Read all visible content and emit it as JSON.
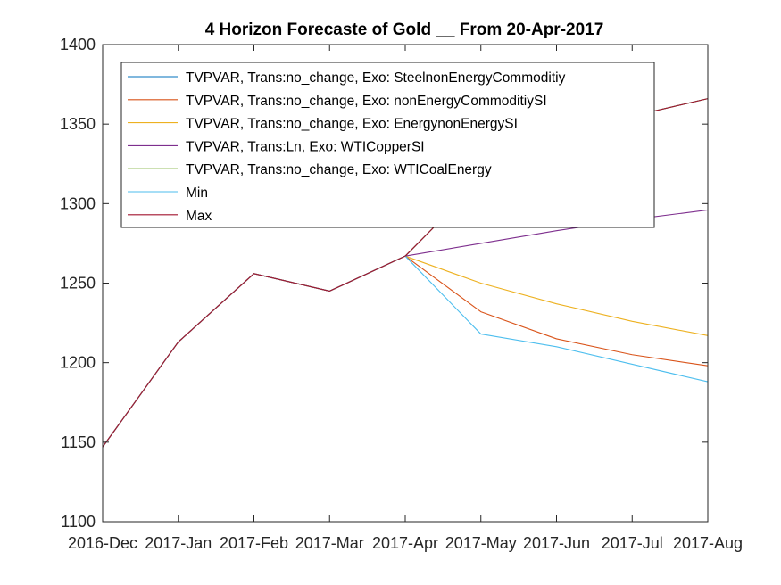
{
  "chart_data": {
    "type": "line",
    "title": "4 Horizon Forecaste of Gold __ From 20-Apr-2017",
    "xlabel": "",
    "ylabel": "",
    "categories": [
      "2016-Dec",
      "2017-Jan",
      "2017-Feb",
      "2017-Mar",
      "2017-Apr",
      "2017-May",
      "2017-Jun",
      "2017-Jul",
      "2017-Aug"
    ],
    "ylim": [
      1100,
      1400
    ],
    "yticks": [
      1100,
      1150,
      1200,
      1250,
      1300,
      1350,
      1400
    ],
    "grid": false,
    "legend_position": "top",
    "series": [
      {
        "name": "TVPVAR, Trans:no_change, Exo: SteelnonEnergyCommoditiy",
        "color": "#0072BD",
        "values": [
          1147,
          1213,
          1256,
          1245,
          1267,
          1315,
          1337,
          1355,
          1366
        ]
      },
      {
        "name": "TVPVAR, Trans:no_change, Exo: nonEnergyCommoditiySI",
        "color": "#D95319",
        "values": [
          1147,
          1213,
          1256,
          1245,
          1267,
          1232,
          1215,
          1205,
          1198
        ]
      },
      {
        "name": "TVPVAR, Trans:no_change, Exo: EnergynonEnergySI",
        "color": "#EDB120",
        "values": [
          1147,
          1213,
          1256,
          1245,
          1267,
          1250,
          1237,
          1226,
          1217
        ]
      },
      {
        "name": "TVPVAR, Trans:Ln, Exo: WTICopperSI",
        "color": "#7E2F8E",
        "values": [
          1147,
          1213,
          1256,
          1245,
          1267,
          1275,
          1283,
          1290,
          1296
        ]
      },
      {
        "name": "TVPVAR, Trans:no_change, Exo: WTICoalEnergy",
        "color": "#77AC30",
        "values": [
          1147,
          1213,
          1256,
          1245,
          1267,
          1315,
          1337,
          1355,
          1366
        ]
      },
      {
        "name": "Min",
        "color": "#4DBEEE",
        "values": [
          1147,
          1213,
          1256,
          1245,
          1267,
          1218,
          1210,
          1199,
          1188
        ]
      },
      {
        "name": "Max",
        "color": "#A2142F",
        "values": [
          1147,
          1213,
          1256,
          1245,
          1267,
          1315,
          1337,
          1355,
          1366
        ]
      }
    ]
  }
}
